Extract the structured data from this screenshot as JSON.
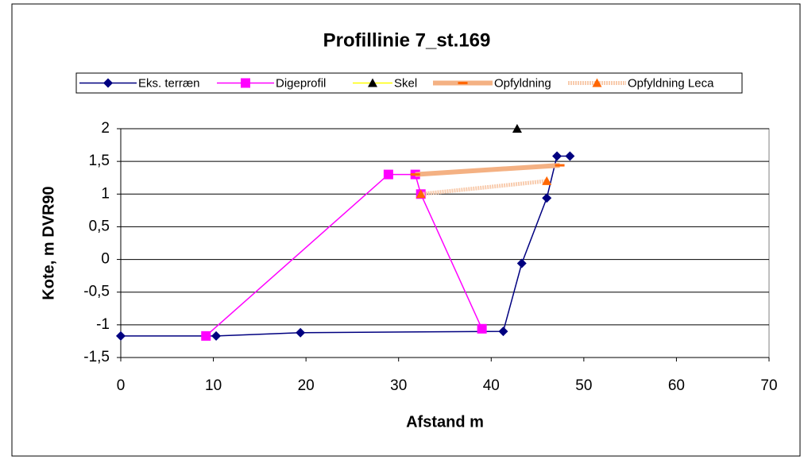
{
  "chart_data": {
    "type": "line",
    "title": "Profillinie 7_st.169",
    "xlabel": "Afstand m",
    "ylabel": "Kote, m DVR90",
    "xlim": [
      0,
      70
    ],
    "xticks": [
      0,
      10,
      20,
      30,
      40,
      50,
      60,
      70
    ],
    "ylim": [
      -1.5,
      2
    ],
    "yticks": [
      {
        "value": -1.5,
        "label": "-1,5"
      },
      {
        "value": -1,
        "label": "-1"
      },
      {
        "value": -0.5,
        "label": "-0,5"
      },
      0,
      {
        "value": 0.5,
        "label": "0,5"
      },
      1,
      {
        "value": 1.5,
        "label": "1,5"
      },
      2
    ],
    "grid": true,
    "legend": "top",
    "series": [
      {
        "name": "Eks. terræn",
        "color": "#000080",
        "marker": "diamond",
        "marker_color": "#000080",
        "line_style": "solid",
        "x": [
          0,
          10.3,
          19.4,
          41.3,
          43.3,
          46.0,
          47.1,
          48.5
        ],
        "values": [
          -1.17,
          -1.17,
          -1.12,
          -1.1,
          -0.06,
          0.94,
          1.58,
          1.58
        ]
      },
      {
        "name": "Digeprofil",
        "color": "#ff00ff",
        "marker": "square",
        "marker_color": "#ff00ff",
        "line_style": "solid",
        "x": [
          9.2,
          28.9,
          31.8,
          32.4,
          39.0
        ],
        "values": [
          -1.17,
          1.3,
          1.3,
          1.0,
          -1.06
        ]
      },
      {
        "name": "Skel",
        "color": "#ffff00",
        "marker": "triangle",
        "marker_color": "#000000",
        "line_style": "solid",
        "x": [
          42.8
        ],
        "values": [
          2.0
        ]
      },
      {
        "name": "Opfyldning",
        "color": "#f4b183",
        "marker": "dash",
        "marker_color": "#ff6600",
        "line_style": "thick",
        "x": [
          31.8,
          47.4
        ],
        "values": [
          1.3,
          1.44
        ]
      },
      {
        "name": "Opfyldning Leca",
        "color": "#f8cbad",
        "marker": "triangle",
        "marker_color": "#ff6600",
        "line_style": "dotted",
        "x": [
          32.4,
          46.0
        ],
        "values": [
          1.0,
          1.2
        ]
      }
    ]
  }
}
